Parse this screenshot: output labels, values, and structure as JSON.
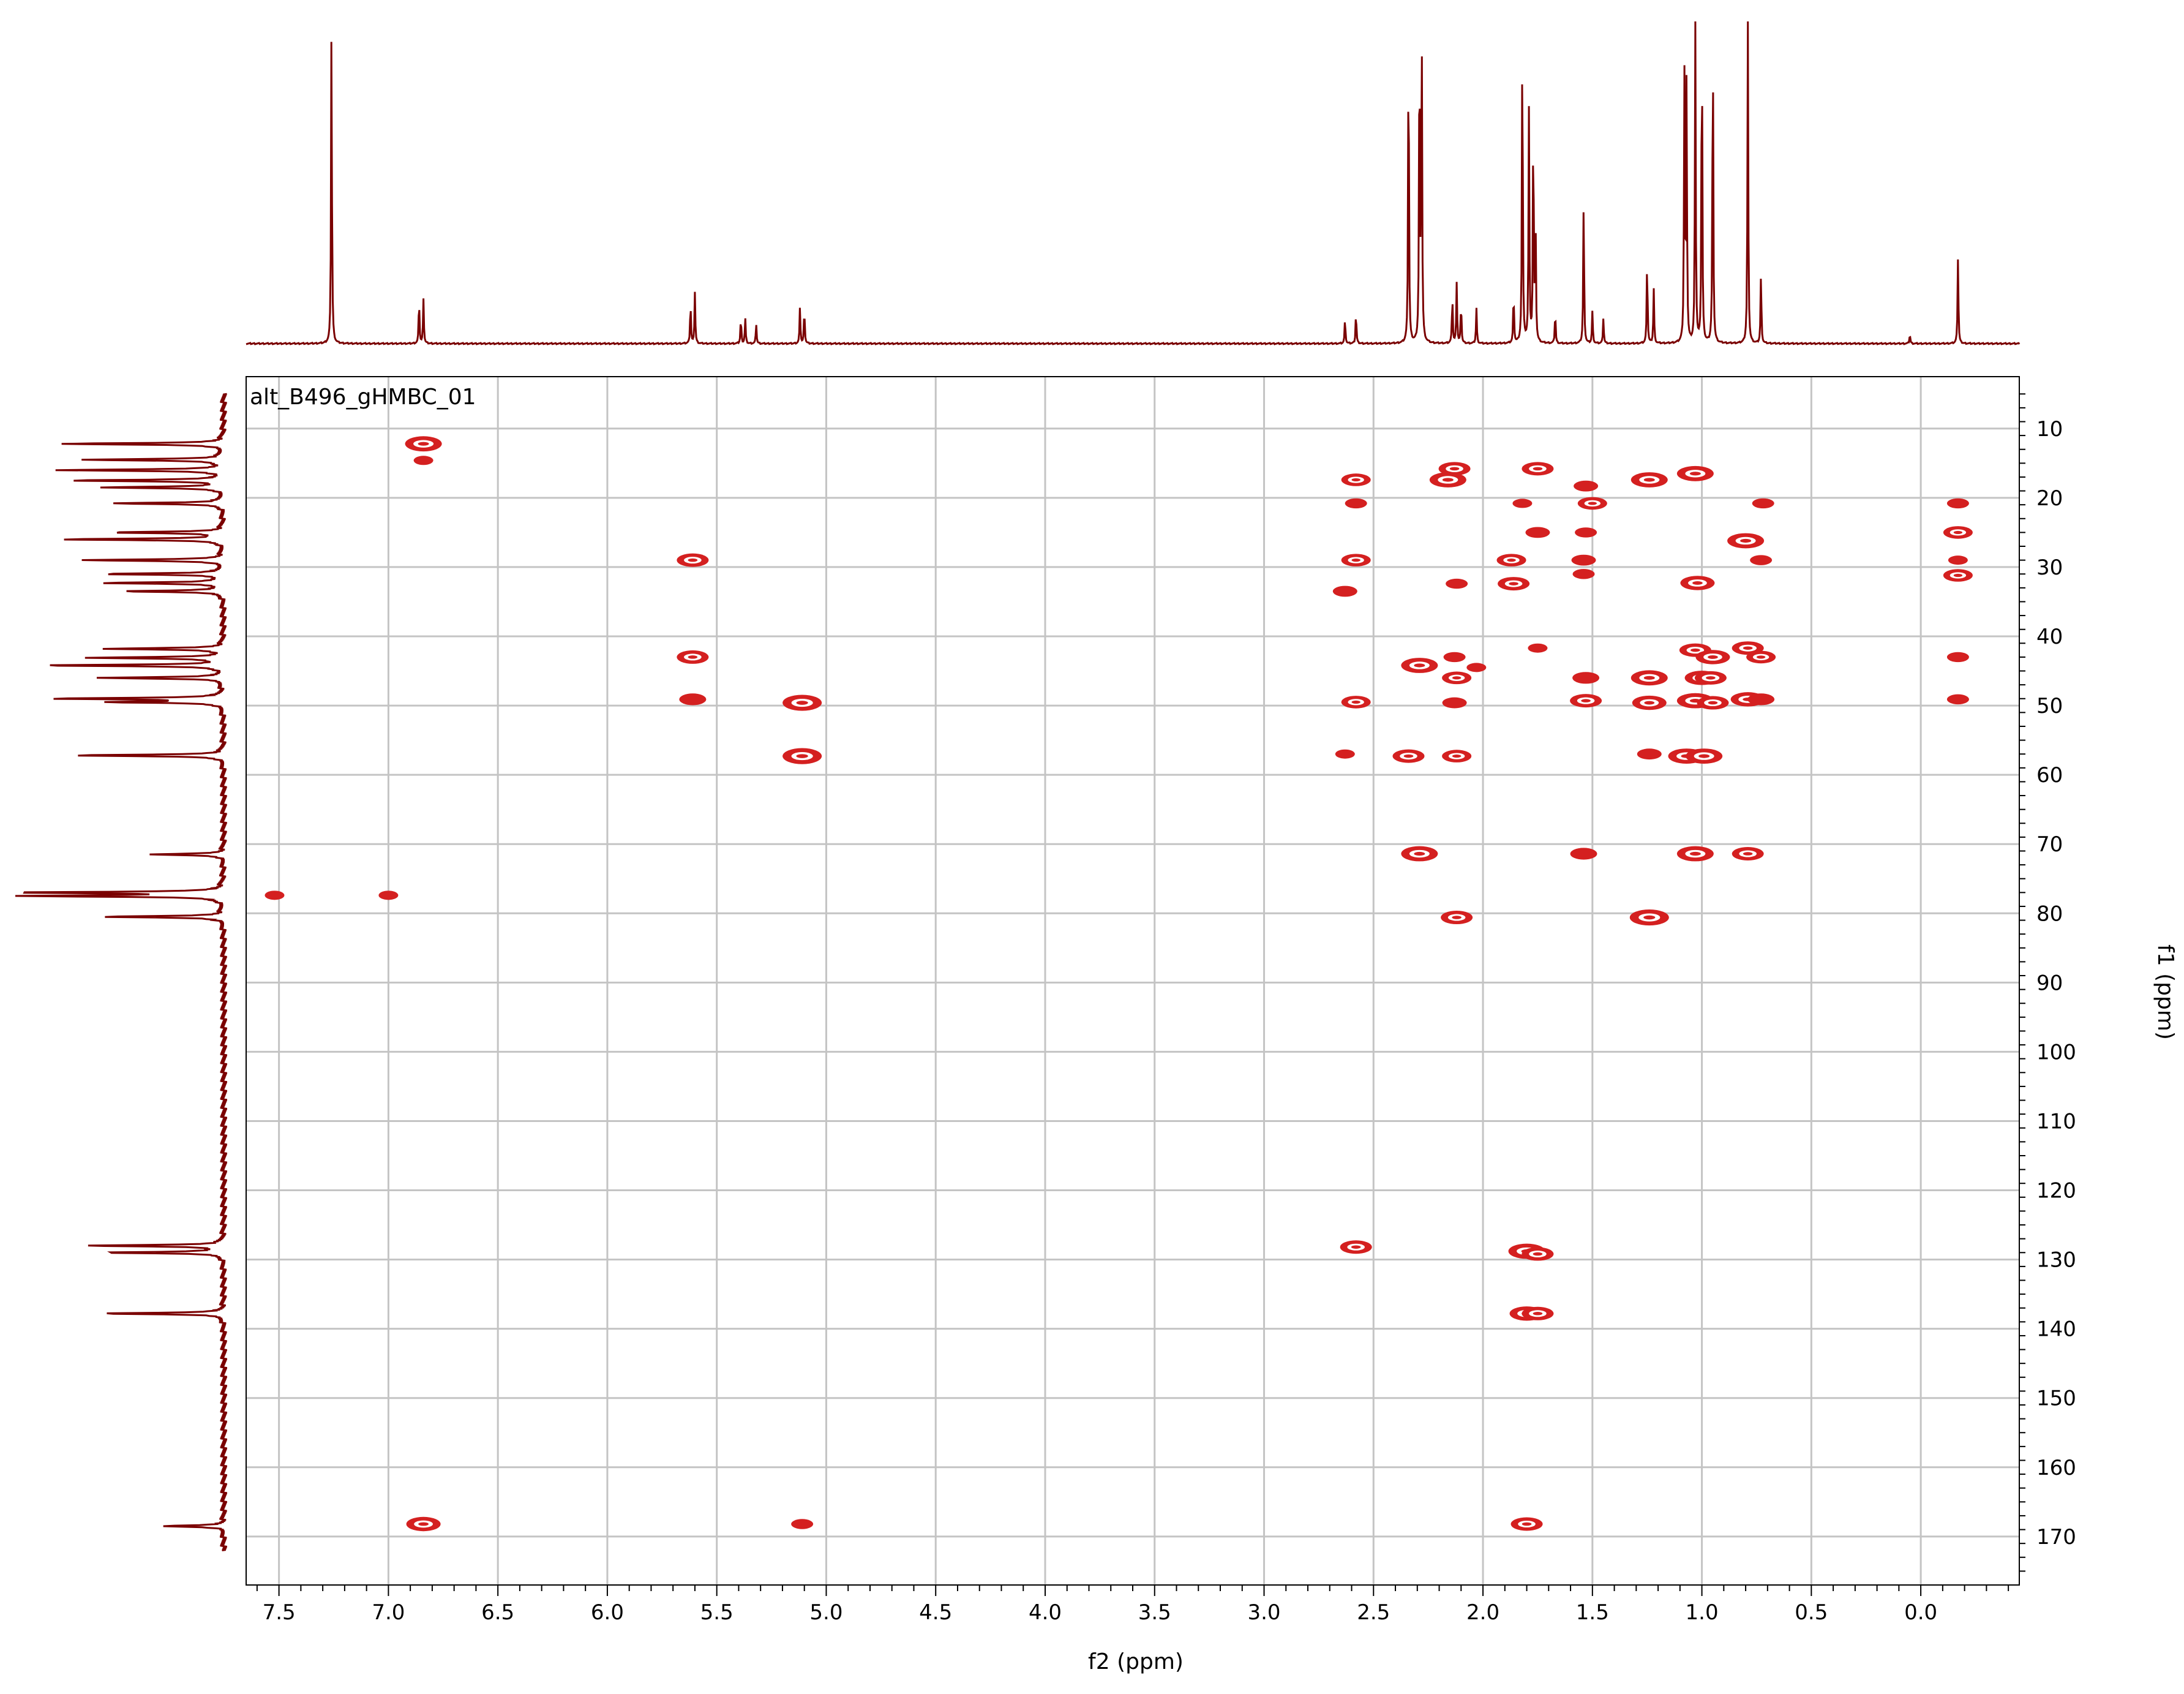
{
  "chart_data": {
    "type": "2d-nmr-contour",
    "title": "alt_B496_gHMBC_01",
    "xlabel": "f2 (ppm)",
    "ylabel": "f1 (ppm)",
    "x_reversed": true,
    "y_reversed": true,
    "xlim": [
      7.65,
      -0.45
    ],
    "ylim": [
      2.5,
      177
    ],
    "x_ticks": [
      "7.5",
      "7.0",
      "6.5",
      "6.0",
      "5.5",
      "5.0",
      "4.5",
      "4.0",
      "3.5",
      "3.0",
      "2.5",
      "2.0",
      "1.5",
      "1.0",
      "0.5",
      "0.0"
    ],
    "x_tick_values": [
      7.5,
      7.0,
      6.5,
      6.0,
      5.5,
      5.0,
      4.5,
      4.0,
      3.5,
      3.0,
      2.5,
      2.0,
      1.5,
      1.0,
      0.5,
      0.0
    ],
    "y_ticks": [
      "10",
      "20",
      "30",
      "40",
      "50",
      "60",
      "70",
      "80",
      "90",
      "100",
      "110",
      "120",
      "130",
      "140",
      "150",
      "160",
      "170"
    ],
    "y_tick_values": [
      10,
      20,
      30,
      40,
      50,
      60,
      70,
      80,
      90,
      100,
      110,
      120,
      130,
      140,
      150,
      160,
      170
    ],
    "grid": true,
    "colors": {
      "contour": "#d42020",
      "spectrum": "#7a0000",
      "grid": "#c4c4c4",
      "axis": "#000000"
    },
    "proton_peaks": [
      {
        "ppm": 7.26,
        "height": 1.0
      },
      {
        "ppm": 6.86,
        "height": 0.14
      },
      {
        "ppm": 6.84,
        "height": 0.14
      },
      {
        "ppm": 5.62,
        "height": 0.13
      },
      {
        "ppm": 5.6,
        "height": 0.16
      },
      {
        "ppm": 5.39,
        "height": 0.08
      },
      {
        "ppm": 5.37,
        "height": 0.08
      },
      {
        "ppm": 5.32,
        "height": 0.06
      },
      {
        "ppm": 5.12,
        "height": 0.11
      },
      {
        "ppm": 5.1,
        "height": 0.11
      },
      {
        "ppm": 2.63,
        "height": 0.08
      },
      {
        "ppm": 2.58,
        "height": 0.1
      },
      {
        "ppm": 2.34,
        "height": 1.0
      },
      {
        "ppm": 2.29,
        "height": 1.0
      },
      {
        "ppm": 2.28,
        "height": 1.0
      },
      {
        "ppm": 2.14,
        "height": 0.15
      },
      {
        "ppm": 2.12,
        "height": 0.19
      },
      {
        "ppm": 2.1,
        "height": 0.13
      },
      {
        "ppm": 2.03,
        "height": 0.11
      },
      {
        "ppm": 1.86,
        "height": 0.16
      },
      {
        "ppm": 1.82,
        "height": 1.0
      },
      {
        "ppm": 1.79,
        "height": 0.72
      },
      {
        "ppm": 1.77,
        "height": 0.7
      },
      {
        "ppm": 1.76,
        "height": 0.4
      },
      {
        "ppm": 1.67,
        "height": 0.1
      },
      {
        "ppm": 1.54,
        "height": 0.45
      },
      {
        "ppm": 1.5,
        "height": 0.1
      },
      {
        "ppm": 1.45,
        "height": 0.08
      },
      {
        "ppm": 1.25,
        "height": 0.26
      },
      {
        "ppm": 1.22,
        "height": 0.17
      },
      {
        "ppm": 1.08,
        "height": 0.84
      },
      {
        "ppm": 1.07,
        "height": 0.8
      },
      {
        "ppm": 1.03,
        "height": 1.0
      },
      {
        "ppm": 1.0,
        "height": 1.0
      },
      {
        "ppm": 0.95,
        "height": 1.0
      },
      {
        "ppm": 0.79,
        "height": 1.0
      },
      {
        "ppm": 0.73,
        "height": 0.22
      },
      {
        "ppm": 0.05,
        "height": 0.03
      },
      {
        "ppm": -0.17,
        "height": 0.27
      }
    ],
    "carbon_peaks": [
      {
        "ppm": 12.2,
        "height": 0.8
      },
      {
        "ppm": 14.5,
        "height": 0.7
      },
      {
        "ppm": 16.0,
        "height": 0.8
      },
      {
        "ppm": 17.5,
        "height": 0.75
      },
      {
        "ppm": 18.5,
        "height": 0.6
      },
      {
        "ppm": 20.8,
        "height": 0.55
      },
      {
        "ppm": 25.0,
        "height": 0.55
      },
      {
        "ppm": 26.0,
        "height": 0.8
      },
      {
        "ppm": 29.0,
        "height": 0.7
      },
      {
        "ppm": 31.0,
        "height": 0.6
      },
      {
        "ppm": 32.3,
        "height": 0.6
      },
      {
        "ppm": 33.5,
        "height": 0.5
      },
      {
        "ppm": 41.8,
        "height": 0.58
      },
      {
        "ppm": 43.1,
        "height": 0.65
      },
      {
        "ppm": 44.2,
        "height": 0.9
      },
      {
        "ppm": 46.0,
        "height": 0.6
      },
      {
        "ppm": 49.0,
        "height": 0.85
      },
      {
        "ppm": 49.5,
        "height": 0.55
      },
      {
        "ppm": 57.2,
        "height": 0.75
      },
      {
        "ppm": 71.5,
        "height": 0.35
      },
      {
        "ppm": 77.0,
        "height": 1.0
      },
      {
        "ppm": 77.5,
        "height": 1.0
      },
      {
        "ppm": 80.5,
        "height": 0.6
      },
      {
        "ppm": 128.0,
        "height": 0.68
      },
      {
        "ppm": 129.0,
        "height": 0.6
      },
      {
        "ppm": 137.8,
        "height": 0.6
      },
      {
        "ppm": 168.5,
        "height": 0.3
      }
    ],
    "cross_peaks": [
      {
        "x": 6.84,
        "y": 12.2,
        "s": 1.2
      },
      {
        "x": 6.84,
        "y": 14.6,
        "s": 0.5
      },
      {
        "x": 6.84,
        "y": 168.2,
        "s": 1.1
      },
      {
        "x": 7.52,
        "y": 77.4,
        "s": 0.5
      },
      {
        "x": 7.0,
        "y": 77.4,
        "s": 0.5
      },
      {
        "x": 5.61,
        "y": 29.0,
        "s": 1.0
      },
      {
        "x": 5.61,
        "y": 43.0,
        "s": 1.0
      },
      {
        "x": 5.61,
        "y": 49.1,
        "s": 0.8
      },
      {
        "x": 5.11,
        "y": 49.6,
        "s": 1.3
      },
      {
        "x": 5.11,
        "y": 57.3,
        "s": 1.3
      },
      {
        "x": 5.11,
        "y": 168.2,
        "s": 0.6
      },
      {
        "x": 2.58,
        "y": 17.4,
        "s": 0.9
      },
      {
        "x": 2.58,
        "y": 20.8,
        "s": 0.6
      },
      {
        "x": 2.58,
        "y": 29.0,
        "s": 0.9
      },
      {
        "x": 2.58,
        "y": 49.5,
        "s": 0.9
      },
      {
        "x": 2.58,
        "y": 128.2,
        "s": 1.0
      },
      {
        "x": 2.63,
        "y": 33.5,
        "s": 0.7
      },
      {
        "x": 2.63,
        "y": 57.0,
        "s": 0.5
      },
      {
        "x": 2.34,
        "y": 57.3,
        "s": 1.0
      },
      {
        "x": 2.29,
        "y": 44.2,
        "s": 1.2
      },
      {
        "x": 2.29,
        "y": 71.4,
        "s": 1.2
      },
      {
        "x": 2.13,
        "y": 15.8,
        "s": 1.0
      },
      {
        "x": 2.16,
        "y": 17.4,
        "s": 1.2
      },
      {
        "x": 2.12,
        "y": 32.4,
        "s": 0.6
      },
      {
        "x": 2.13,
        "y": 43.0,
        "s": 0.6
      },
      {
        "x": 2.12,
        "y": 46.0,
        "s": 0.9
      },
      {
        "x": 2.13,
        "y": 49.6,
        "s": 0.7
      },
      {
        "x": 2.12,
        "y": 57.3,
        "s": 0.9
      },
      {
        "x": 2.12,
        "y": 80.6,
        "s": 1.0
      },
      {
        "x": 2.03,
        "y": 44.5,
        "s": 0.5
      },
      {
        "x": 1.75,
        "y": 15.8,
        "s": 1.0
      },
      {
        "x": 1.82,
        "y": 20.8,
        "s": 0.5
      },
      {
        "x": 1.75,
        "y": 25.0,
        "s": 0.7
      },
      {
        "x": 1.87,
        "y": 29.0,
        "s": 0.9
      },
      {
        "x": 1.86,
        "y": 32.4,
        "s": 1.0
      },
      {
        "x": 1.75,
        "y": 41.7,
        "s": 0.5
      },
      {
        "x": 1.8,
        "y": 128.8,
        "s": 1.2
      },
      {
        "x": 1.75,
        "y": 129.2,
        "s": 1.0
      },
      {
        "x": 1.8,
        "y": 137.8,
        "s": 1.1
      },
      {
        "x": 1.75,
        "y": 137.8,
        "s": 1.0
      },
      {
        "x": 1.8,
        "y": 168.2,
        "s": 1.0
      },
      {
        "x": 1.53,
        "y": 18.3,
        "s": 0.7
      },
      {
        "x": 1.5,
        "y": 20.8,
        "s": 0.9
      },
      {
        "x": 1.53,
        "y": 25.0,
        "s": 0.6
      },
      {
        "x": 1.54,
        "y": 29.0,
        "s": 0.7
      },
      {
        "x": 1.54,
        "y": 31.0,
        "s": 0.6
      },
      {
        "x": 1.53,
        "y": 46.0,
        "s": 0.8
      },
      {
        "x": 1.53,
        "y": 49.3,
        "s": 1.0
      },
      {
        "x": 1.54,
        "y": 71.4,
        "s": 0.8
      },
      {
        "x": 1.24,
        "y": 17.4,
        "s": 1.2
      },
      {
        "x": 1.24,
        "y": 46.0,
        "s": 1.2
      },
      {
        "x": 1.24,
        "y": 49.6,
        "s": 1.1
      },
      {
        "x": 1.24,
        "y": 57.0,
        "s": 0.7
      },
      {
        "x": 1.24,
        "y": 80.6,
        "s": 1.3
      },
      {
        "x": 1.07,
        "y": 57.3,
        "s": 1.2
      },
      {
        "x": 1.03,
        "y": 16.5,
        "s": 1.2
      },
      {
        "x": 1.02,
        "y": 32.3,
        "s": 1.1
      },
      {
        "x": 1.03,
        "y": 42.0,
        "s": 1.0
      },
      {
        "x": 1.0,
        "y": 46.0,
        "s": 1.1
      },
      {
        "x": 1.03,
        "y": 49.3,
        "s": 1.2
      },
      {
        "x": 0.99,
        "y": 57.3,
        "s": 1.2
      },
      {
        "x": 1.03,
        "y": 71.4,
        "s": 1.2
      },
      {
        "x": 0.95,
        "y": 43.0,
        "s": 1.1
      },
      {
        "x": 0.96,
        "y": 46.0,
        "s": 1.0
      },
      {
        "x": 0.95,
        "y": 49.6,
        "s": 1.0
      },
      {
        "x": 0.8,
        "y": 26.2,
        "s": 1.2
      },
      {
        "x": 0.79,
        "y": 41.7,
        "s": 1.0
      },
      {
        "x": 0.79,
        "y": 49.1,
        "s": 1.1
      },
      {
        "x": 0.79,
        "y": 71.4,
        "s": 1.0
      },
      {
        "x": 0.72,
        "y": 20.8,
        "s": 0.6
      },
      {
        "x": 0.73,
        "y": 29.0,
        "s": 0.6
      },
      {
        "x": 0.73,
        "y": 43.0,
        "s": 0.9
      },
      {
        "x": 0.73,
        "y": 49.1,
        "s": 0.8
      },
      {
        "x": -0.17,
        "y": 20.8,
        "s": 0.6
      },
      {
        "x": -0.17,
        "y": 25.0,
        "s": 0.9
      },
      {
        "x": -0.17,
        "y": 29.0,
        "s": 0.5
      },
      {
        "x": -0.17,
        "y": 31.2,
        "s": 0.9
      },
      {
        "x": -0.17,
        "y": 43.0,
        "s": 0.6
      },
      {
        "x": -0.17,
        "y": 49.1,
        "s": 0.6
      }
    ]
  }
}
